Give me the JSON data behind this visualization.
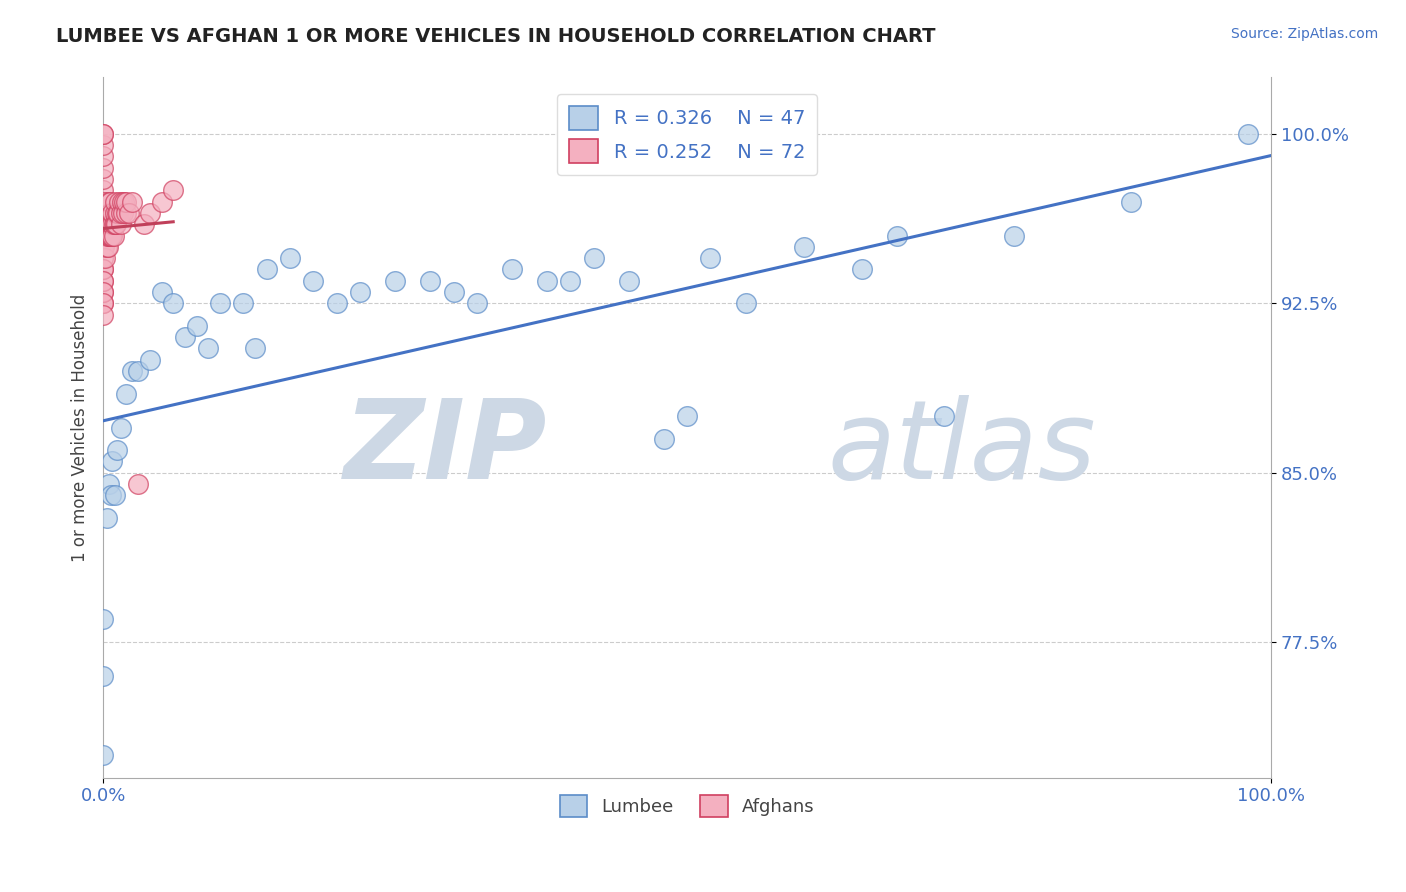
{
  "title": "LUMBEE VS AFGHAN 1 OR MORE VEHICLES IN HOUSEHOLD CORRELATION CHART",
  "ylabel": "1 or more Vehicles in Household",
  "source_text": "Source: ZipAtlas.com",
  "xlim": [
    0.0,
    1.0
  ],
  "ylim": [
    0.715,
    1.025
  ],
  "yticks": [
    0.775,
    0.85,
    0.925,
    1.0
  ],
  "ytick_labels": [
    "77.5%",
    "85.0%",
    "92.5%",
    "100.0%"
  ],
  "xtick_labels": [
    "0.0%",
    "100.0%"
  ],
  "legend_R_lumbee": "R = 0.326",
  "legend_N_lumbee": "N = 47",
  "legend_R_afghan": "R = 0.252",
  "legend_N_afghan": "N = 72",
  "lumbee_color": "#b8d0e8",
  "afghan_color": "#f4b0c0",
  "lumbee_edge_color": "#5b8cc8",
  "afghan_edge_color": "#d04060",
  "lumbee_line_color": "#4472C4",
  "afghan_line_color": "#C0405A",
  "watermark_zip": "ZIP",
  "watermark_atlas": "atlas",
  "watermark_color": "#cdd8e5",
  "lumbee_x": [
    0.0,
    0.0,
    0.0,
    0.003,
    0.005,
    0.007,
    0.008,
    0.01,
    0.012,
    0.015,
    0.02,
    0.025,
    0.03,
    0.04,
    0.05,
    0.06,
    0.07,
    0.08,
    0.09,
    0.1,
    0.12,
    0.13,
    0.14,
    0.16,
    0.18,
    0.2,
    0.22,
    0.25,
    0.28,
    0.3,
    0.32,
    0.35,
    0.38,
    0.4,
    0.42,
    0.45,
    0.48,
    0.5,
    0.52,
    0.55,
    0.6,
    0.65,
    0.68,
    0.72,
    0.78,
    0.88,
    0.98
  ],
  "lumbee_y": [
    0.76,
    0.785,
    0.725,
    0.83,
    0.845,
    0.84,
    0.855,
    0.84,
    0.86,
    0.87,
    0.885,
    0.895,
    0.895,
    0.9,
    0.93,
    0.925,
    0.91,
    0.915,
    0.905,
    0.925,
    0.925,
    0.905,
    0.94,
    0.945,
    0.935,
    0.925,
    0.93,
    0.935,
    0.935,
    0.93,
    0.925,
    0.94,
    0.935,
    0.935,
    0.945,
    0.935,
    0.865,
    0.875,
    0.945,
    0.925,
    0.95,
    0.94,
    0.955,
    0.875,
    0.955,
    0.97,
    1.0
  ],
  "afghan_x": [
    0.0,
    0.0,
    0.0,
    0.0,
    0.0,
    0.0,
    0.0,
    0.0,
    0.0,
    0.0,
    0.0,
    0.0,
    0.0,
    0.0,
    0.0,
    0.0,
    0.0,
    0.0,
    0.0,
    0.0,
    0.0,
    0.0,
    0.0,
    0.0,
    0.001,
    0.001,
    0.002,
    0.002,
    0.002,
    0.002,
    0.003,
    0.003,
    0.003,
    0.004,
    0.004,
    0.004,
    0.005,
    0.005,
    0.005,
    0.005,
    0.006,
    0.006,
    0.006,
    0.006,
    0.007,
    0.007,
    0.008,
    0.008,
    0.008,
    0.009,
    0.009,
    0.01,
    0.01,
    0.01,
    0.011,
    0.012,
    0.013,
    0.014,
    0.015,
    0.015,
    0.016,
    0.017,
    0.018,
    0.02,
    0.02,
    0.022,
    0.025,
    0.03,
    0.035,
    0.04,
    0.05,
    0.06
  ],
  "afghan_y": [
    0.925,
    0.93,
    0.935,
    0.94,
    0.945,
    0.95,
    0.955,
    0.96,
    0.965,
    0.97,
    0.975,
    0.98,
    0.985,
    0.99,
    0.995,
    1.0,
    1.0,
    0.96,
    0.955,
    0.94,
    0.935,
    0.93,
    0.925,
    0.92,
    0.95,
    0.96,
    0.945,
    0.955,
    0.96,
    0.97,
    0.95,
    0.955,
    0.96,
    0.95,
    0.955,
    0.96,
    0.955,
    0.96,
    0.965,
    0.97,
    0.955,
    0.96,
    0.965,
    0.97,
    0.955,
    0.96,
    0.955,
    0.96,
    0.965,
    0.955,
    0.96,
    0.96,
    0.965,
    0.97,
    0.96,
    0.965,
    0.965,
    0.97,
    0.96,
    0.965,
    0.97,
    0.965,
    0.97,
    0.965,
    0.97,
    0.965,
    0.97,
    0.845,
    0.96,
    0.965,
    0.97,
    0.975
  ]
}
